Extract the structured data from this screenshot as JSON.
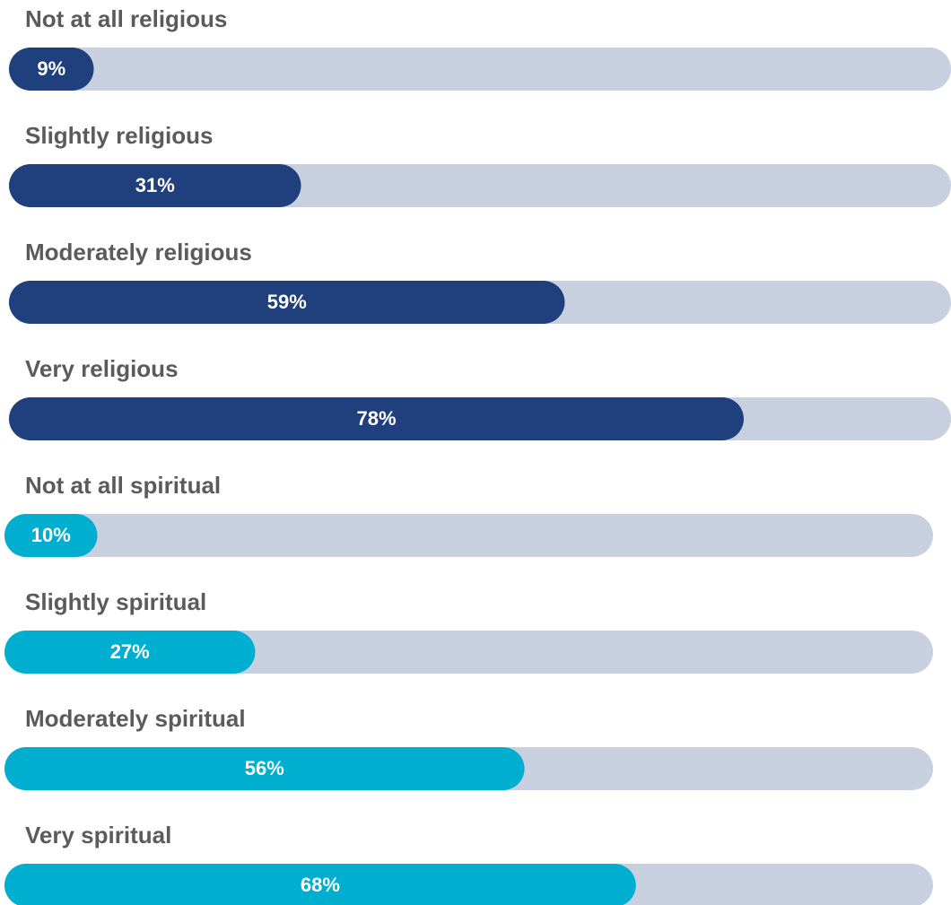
{
  "chart_data": {
    "type": "bar",
    "categories": [
      "Not at all religious",
      "Slightly religious",
      "Moderately religious",
      "Very religious",
      "Not at all spiritual",
      "Slightly spiritual",
      "Moderately spiritual",
      "Very spiritual"
    ],
    "values": [
      9,
      31,
      59,
      78,
      10,
      27,
      56,
      68
    ],
    "value_labels": [
      "9%",
      "31%",
      "59%",
      "78%",
      "10%",
      "27%",
      "56%",
      "68%"
    ],
    "colors": [
      "#1f3f7d",
      "#1f3f7d",
      "#1f3f7d",
      "#1f3f7d",
      "#00afcf",
      "#00afcf",
      "#00afcf",
      "#00afcf"
    ],
    "track_color": "#c8d0df",
    "xlim": [
      0,
      100
    ]
  }
}
